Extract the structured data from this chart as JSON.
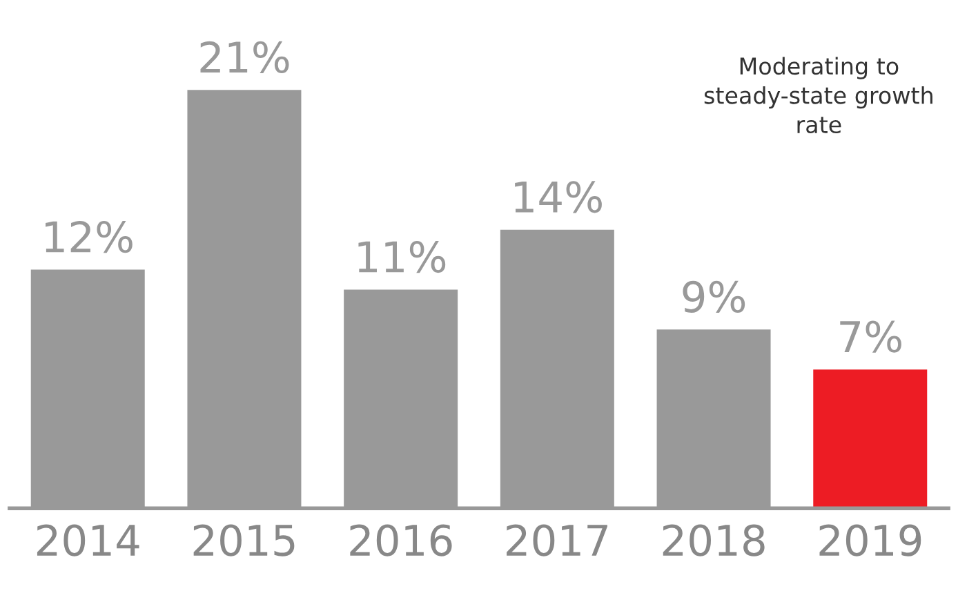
{
  "chart_data": {
    "type": "bar",
    "categories": [
      "2014",
      "2015",
      "2016",
      "2017",
      "2018",
      "2019"
    ],
    "values": [
      12,
      21,
      11,
      14,
      9,
      7
    ],
    "colors": [
      "#999999",
      "#999999",
      "#999999",
      "#999999",
      "#999999",
      "#ed1c24"
    ],
    "value_labels": [
      "12%",
      "21%",
      "11%",
      "14%",
      "9%",
      "7%"
    ],
    "annotations": [
      "Moderating to\nsteady-state growth\nrate"
    ],
    "tick_labels": "x",
    "grid": false,
    "legend": false
  }
}
